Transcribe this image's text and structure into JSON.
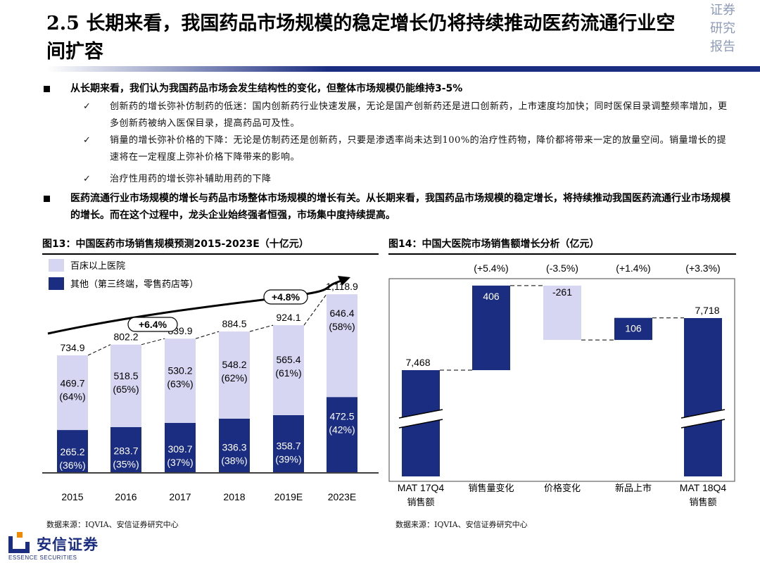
{
  "title": "2.5 长期来看，我国药品市场规模的稳定增长仍将持续推动医药流通行业空间扩容",
  "corner_tag": [
    "证券",
    "研究",
    "报告"
  ],
  "bullets": [
    {
      "level": 1,
      "text": "从长期来看，我们认为我国药品市场会发生结构性的变化，但整体市场规模仍能维持3-5%"
    },
    {
      "level": 2,
      "text": "创新药的增长弥补仿制药的低迷：国内创新药行业快速发展，无论是国产创新药还是进口创新药，上市速度均加快；同时医保目录调整频率增加，更多创新药被纳入医保目录，提高药品可及性。"
    },
    {
      "level": 2,
      "text": "销量的增长弥补价格的下降：无论是仿制药还是创新药，只要是渗透率尚未达到100%的治疗性药物，降价都将带来一定的放量空间。销量增长的提速将在一定程度上弥补价格下降带来的影响。"
    },
    {
      "level": 2,
      "text": "治疗性用药的增长弥补辅助用药的下降"
    },
    {
      "level": 1,
      "text": "医药流通行业市场规模的增长与药品市场整体市场规模的增长有关。从长期来看，我国药品市场规模的稳定增长，将持续推动我国医药流通行业市场规模的增长。而在这个过程中，龙头企业始终强者恒强，市场集中度持续提高。"
    }
  ],
  "figures": {
    "left_title": "图13：中国医药市场销售规模预测2015-2023E（十亿元）",
    "right_title": "图14：中国大医院市场销售额增长分析（亿元）",
    "left_source": "数据来源：IQVIA、安信证券研究中心",
    "right_source": "数据来源：IQVIA、安信证券研究中心"
  },
  "chart_data": [
    {
      "type": "bar",
      "stacked": true,
      "categories": [
        "2015",
        "2016",
        "2017",
        "2018",
        "2019E",
        "2023E"
      ],
      "series": [
        {
          "name": "其他（第三终端，零售药店等）",
          "values": [
            265.2,
            283.7,
            309.7,
            336.3,
            358.7,
            472.5
          ],
          "share_labels": [
            "(36%)",
            "(35%)",
            "(37%)",
            "(38%)",
            "(39%)",
            "(42%)"
          ],
          "color": "#1b2d80"
        },
        {
          "name": "百床以上医院",
          "values": [
            469.7,
            518.5,
            530.2,
            548.2,
            565.4,
            646.4
          ],
          "share_labels": [
            "(64%)",
            "(65%)",
            "(63%)",
            "(62%)",
            "(61%)",
            "(58%)"
          ],
          "color": "#d6d6f2"
        }
      ],
      "totals": [
        "734.9",
        "802.2",
        "839.9",
        "884.5",
        "924.1",
        "1,118.9"
      ],
      "growth_annotations": [
        "+6.4%",
        "+4.8%"
      ]
    },
    {
      "type": "waterfall",
      "categories": [
        "MAT 17Q4 销售额",
        "销售量变化",
        "价格变化",
        "新品上市",
        "MAT 18Q4 销售额"
      ],
      "values": [
        7468,
        406,
        -261,
        106,
        7718
      ],
      "value_labels": [
        "7,468",
        "406",
        "-261",
        "106",
        "7,718"
      ],
      "growth_labels": [
        "(+5.4%)",
        "(-3.5%)",
        "(+1.4%)",
        "(+3.3%)"
      ],
      "colors": {
        "total": "#1b2d80",
        "increase": "#1b2d80",
        "decrease": "#d6d6f2"
      }
    }
  ],
  "logo": {
    "name": "安信证券",
    "english": "ESSENCE SECURITIES"
  }
}
